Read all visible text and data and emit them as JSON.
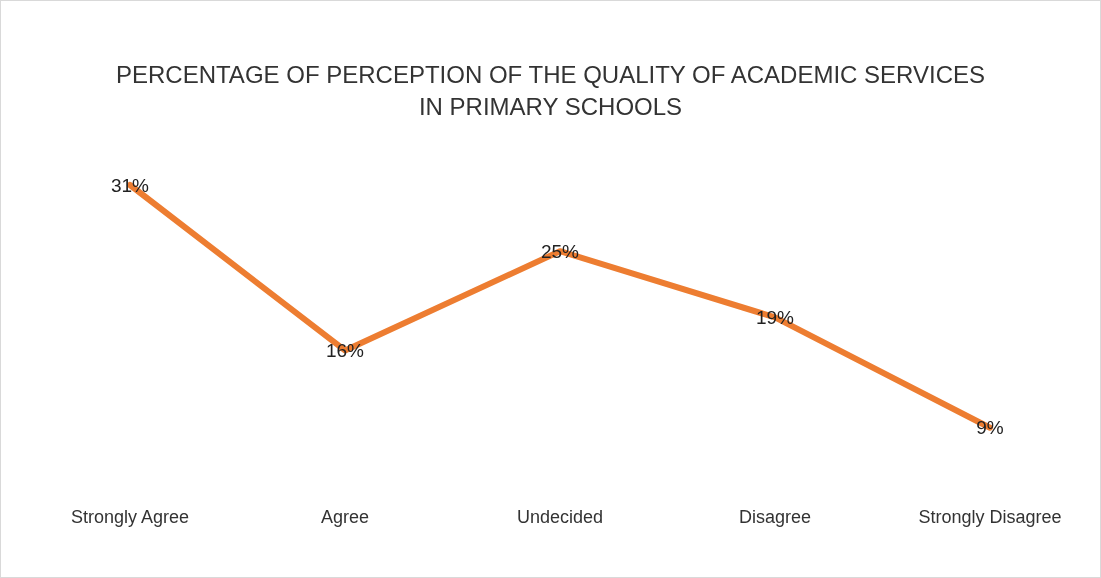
{
  "chart_data": {
    "type": "line",
    "title": "PERCENTAGE OF PERCEPTION OF THE QUALITY OF ACADEMIC SERVICES IN PRIMARY SCHOOLS",
    "categories": [
      "Strongly Agree",
      "Agree",
      "Undecided",
      "Disagree",
      "Strongly Disagree"
    ],
    "series": [
      {
        "color": "#ed7d31",
        "values": [
          31,
          16,
          25,
          19,
          9
        ],
        "value_labels": [
          "31%",
          "16%",
          "25%",
          "19%",
          "9%"
        ]
      }
    ],
    "grid": false,
    "marker": "none",
    "line_style": "solid"
  }
}
